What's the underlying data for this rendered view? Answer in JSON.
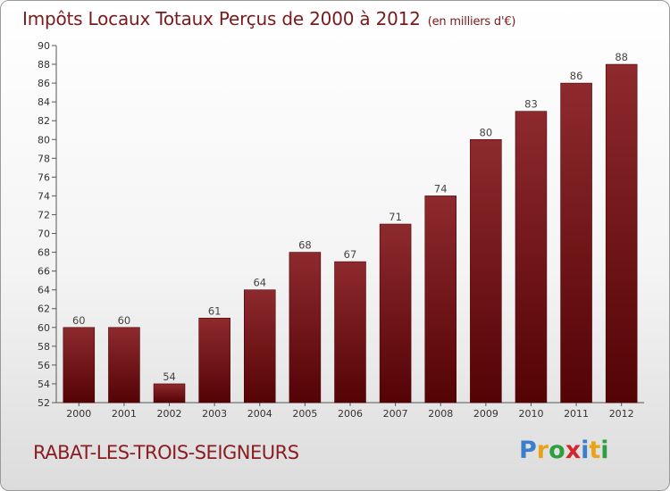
{
  "header": {
    "title": "Impôts Locaux Totaux Perçus de 2000 à 2012",
    "unit": "(en milliers d'€)"
  },
  "footer": {
    "commune": "RABAT-LES-TROIS-SEIGNEURS",
    "logo": {
      "letters": [
        "P",
        "r",
        "o",
        "x",
        "i",
        "t",
        "i"
      ],
      "colors": [
        "#3b7ec9",
        "#e8a317",
        "#2f9e3e",
        "#d4262f",
        "#3b7ec9",
        "#e8a317",
        "#2f9e3e"
      ]
    }
  },
  "chart_data": {
    "type": "bar",
    "title": "Impôts Locaux Totaux Perçus de 2000 à 2012",
    "xlabel": "",
    "ylabel": "",
    "categories": [
      "2000",
      "2001",
      "2002",
      "2003",
      "2004",
      "2005",
      "2006",
      "2007",
      "2008",
      "2009",
      "2010",
      "2011",
      "2012"
    ],
    "values": [
      60,
      60,
      54,
      61,
      64,
      68,
      67,
      71,
      74,
      80,
      83,
      86,
      88
    ],
    "ylim": [
      52,
      90
    ],
    "yticks": [
      52,
      54,
      56,
      58,
      60,
      62,
      64,
      66,
      68,
      70,
      72,
      74,
      76,
      78,
      80,
      82,
      84,
      86,
      88,
      90
    ],
    "data_labels": true,
    "grid": false,
    "legend": "none",
    "bar_color": "#7b1519"
  }
}
